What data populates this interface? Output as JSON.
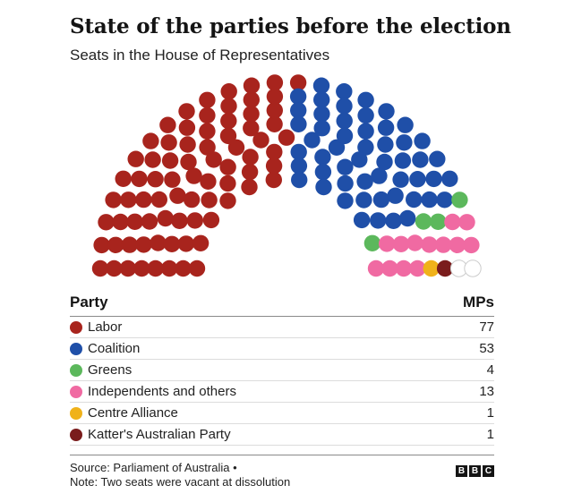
{
  "title": "State of the parties before the election",
  "subtitle": "Seats in the House of Representatives",
  "table": {
    "party_header": "Party",
    "mps_header": "MPs"
  },
  "footer": {
    "source": "Source: Parliament of Australia •",
    "note": "Note: Two seats were vacant at dissolution",
    "logo": [
      "B",
      "B",
      "C"
    ]
  },
  "chart_data": {
    "type": "parliament",
    "title": "State of the parties before the election",
    "subtitle": "Seats in the House of Representatives",
    "total_seats": 151,
    "series": [
      {
        "name": "Labor",
        "value": 77,
        "color": "#a8241d"
      },
      {
        "name": "Coalition",
        "value": 53,
        "color": "#1f4fa8"
      },
      {
        "name": "Greens",
        "value": 4,
        "color": "#5cb85c"
      },
      {
        "name": "Independents and others",
        "value": 13,
        "color": "#f06aa2"
      },
      {
        "name": "Centre Alliance",
        "value": 1,
        "color": "#f0b21a"
      },
      {
        "name": "Katter's Australian Party",
        "value": 1,
        "color": "#7a1c1c"
      }
    ],
    "vacant": {
      "value": 2,
      "color": "#ffffff",
      "stroke": "#cccccc"
    }
  }
}
